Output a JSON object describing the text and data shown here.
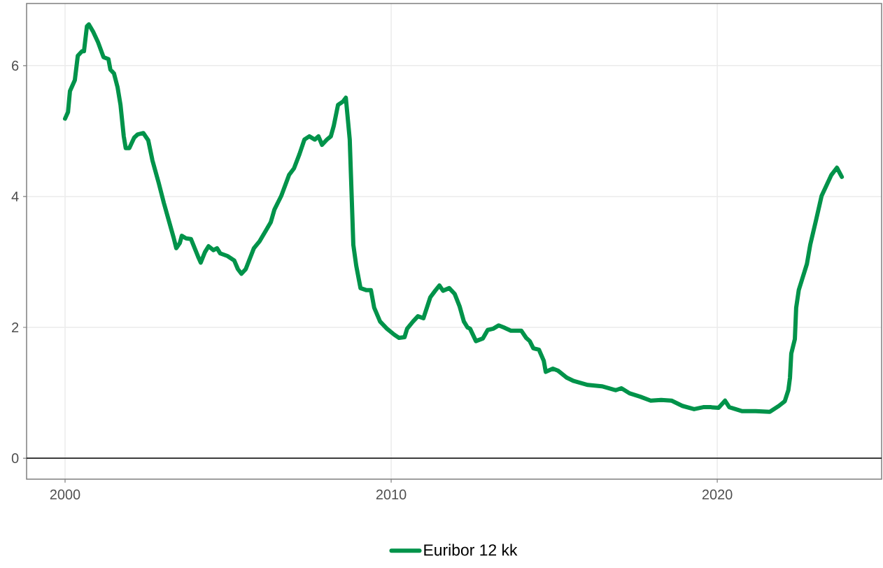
{
  "chart_data": {
    "type": "line",
    "x": [
      2000.0,
      2000.09,
      2000.15,
      2000.3,
      2000.39,
      2000.52,
      2000.58,
      2000.67,
      2000.73,
      2000.86,
      2001.01,
      2001.18,
      2001.33,
      2001.39,
      2001.5,
      2001.61,
      2001.7,
      2001.8,
      2001.86,
      2001.97,
      2002.12,
      2002.23,
      2002.4,
      2002.55,
      2002.68,
      2002.87,
      2003.03,
      2003.2,
      2003.33,
      2003.41,
      2003.52,
      2003.58,
      2003.71,
      2003.86,
      2004.08,
      2004.16,
      2004.29,
      2004.4,
      2004.55,
      2004.66,
      2004.76,
      2004.98,
      2005.19,
      2005.3,
      2005.41,
      2005.54,
      2005.79,
      2005.97,
      2006.16,
      2006.31,
      2006.42,
      2006.63,
      2006.87,
      2007.02,
      2007.19,
      2007.34,
      2007.49,
      2007.66,
      2007.77,
      2007.88,
      2008.03,
      2008.15,
      2008.24,
      2008.37,
      2008.52,
      2008.61,
      2008.73,
      2008.84,
      2008.93,
      2009.06,
      2009.23,
      2009.38,
      2009.48,
      2009.66,
      2009.87,
      2010.09,
      2010.24,
      2010.41,
      2010.49,
      2010.67,
      2010.82,
      2010.99,
      2011.2,
      2011.35,
      2011.48,
      2011.59,
      2011.78,
      2011.95,
      2012.1,
      2012.23,
      2012.34,
      2012.42,
      2012.6,
      2012.81,
      2012.96,
      2013.13,
      2013.3,
      2013.45,
      2013.67,
      2013.99,
      2014.14,
      2014.25,
      2014.36,
      2014.53,
      2014.68,
      2014.74,
      2014.96,
      2015.11,
      2015.39,
      2015.6,
      2016.03,
      2016.46,
      2016.89,
      2017.06,
      2017.32,
      2017.64,
      2017.96,
      2018.28,
      2018.6,
      2018.93,
      2019.29,
      2019.57,
      2019.79,
      2020.04,
      2020.24,
      2020.37,
      2020.75,
      2021.18,
      2021.61,
      2021.89,
      2022.07,
      2022.18,
      2022.23,
      2022.27,
      2022.38,
      2022.42,
      2022.5,
      2022.6,
      2022.75,
      2022.85,
      2023.03,
      2023.2,
      2023.5,
      2023.67,
      2023.82
    ],
    "series": [
      {
        "name": "Euribor 12 kk",
        "color": "#00934a",
        "values": [
          5.19,
          5.29,
          5.61,
          5.78,
          6.15,
          6.22,
          6.22,
          6.6,
          6.63,
          6.52,
          6.36,
          6.13,
          6.1,
          5.94,
          5.88,
          5.67,
          5.4,
          4.92,
          4.74,
          4.74,
          4.9,
          4.95,
          4.97,
          4.86,
          4.55,
          4.21,
          3.9,
          3.6,
          3.37,
          3.21,
          3.29,
          3.4,
          3.36,
          3.35,
          3.08,
          2.99,
          3.15,
          3.24,
          3.18,
          3.21,
          3.13,
          3.09,
          3.02,
          2.89,
          2.82,
          2.89,
          3.21,
          3.32,
          3.48,
          3.61,
          3.8,
          4.01,
          4.33,
          4.43,
          4.65,
          4.87,
          4.92,
          4.87,
          4.92,
          4.79,
          4.87,
          4.92,
          5.08,
          5.4,
          5.45,
          5.51,
          4.87,
          3.26,
          2.94,
          2.6,
          2.57,
          2.57,
          2.3,
          2.09,
          1.98,
          1.89,
          1.84,
          1.85,
          1.98,
          2.09,
          2.17,
          2.14,
          2.46,
          2.56,
          2.64,
          2.56,
          2.6,
          2.51,
          2.32,
          2.09,
          2.0,
          1.98,
          1.79,
          1.83,
          1.96,
          1.98,
          2.03,
          2.0,
          1.95,
          1.95,
          1.84,
          1.79,
          1.68,
          1.66,
          1.49,
          1.32,
          1.37,
          1.34,
          1.23,
          1.18,
          1.12,
          1.1,
          1.04,
          1.07,
          0.99,
          0.94,
          0.88,
          0.89,
          0.88,
          0.8,
          0.75,
          0.78,
          0.78,
          0.77,
          0.88,
          0.78,
          0.72,
          0.72,
          0.71,
          0.8,
          0.87,
          1.04,
          1.23,
          1.6,
          1.82,
          2.3,
          2.57,
          2.73,
          2.97,
          3.26,
          3.64,
          4.01,
          4.33,
          4.44,
          4.3
        ]
      }
    ],
    "xlim": [
      1998.82,
      2025.04
    ],
    "ylim": [
      -0.32,
      6.95
    ],
    "xticks": [
      2000,
      2010,
      2020
    ],
    "yticks": [
      0,
      2,
      4,
      6
    ],
    "ref_lines": [
      {
        "axis": "y",
        "value": 0,
        "color": "#000000"
      }
    ],
    "grid": true,
    "legend": "bottom",
    "marker": "none",
    "line_style": "solid"
  }
}
